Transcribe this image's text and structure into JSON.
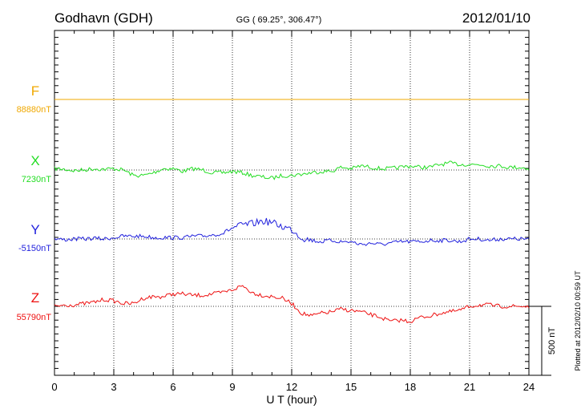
{
  "header": {
    "station": "Godhavn (GDH)",
    "coords": "GG ( 69.25°, 306.47°)",
    "date": "2012/01/10"
  },
  "footer": {
    "plotted": "Plotted at 2012/02/10 00:59 UT"
  },
  "chart_data": {
    "type": "line",
    "title": "Godhavn (GDH)",
    "xlabel": "U T (hour)",
    "ylabel": "",
    "xlim": [
      0,
      24
    ],
    "xticks": [
      0,
      3,
      6,
      9,
      12,
      15,
      18,
      21,
      24
    ],
    "grid": true,
    "scale_bar": {
      "label": "500 nT",
      "value_nT": 500
    },
    "series": [
      {
        "name": "F",
        "baseline_label": "88880nT",
        "color": "#f0a800",
        "x": [
          0,
          24
        ],
        "values": [
          0,
          0
        ]
      },
      {
        "name": "X",
        "baseline_label": "7230nT",
        "color": "#22dd22",
        "x": [
          0,
          0.5,
          1,
          1.5,
          2,
          2.5,
          3,
          3.5,
          4,
          4.5,
          5,
          5.5,
          6,
          6.5,
          7,
          7.5,
          8,
          8.5,
          9,
          9.5,
          10,
          10.5,
          11,
          11.5,
          12,
          12.5,
          13,
          13.5,
          14,
          14.5,
          15,
          15.5,
          16,
          16.5,
          17,
          17.5,
          18,
          18.5,
          19,
          19.5,
          20,
          20.5,
          21,
          21.5,
          22,
          22.5,
          23,
          23.5,
          24
        ],
        "values": [
          10,
          5,
          -5,
          0,
          10,
          5,
          10,
          0,
          -40,
          -40,
          -20,
          10,
          10,
          -10,
          10,
          0,
          -20,
          -20,
          -10,
          -20,
          -40,
          -50,
          -60,
          -40,
          -40,
          -30,
          -20,
          -10,
          -10,
          20,
          10,
          30,
          20,
          10,
          10,
          20,
          30,
          20,
          20,
          40,
          50,
          40,
          40,
          40,
          30,
          30,
          20,
          20,
          10
        ]
      },
      {
        "name": "Y",
        "baseline_label": "-5150nT",
        "color": "#2222dd",
        "x": [
          0,
          0.5,
          1,
          1.5,
          2,
          2.5,
          3,
          3.5,
          4,
          4.5,
          5,
          5.5,
          6,
          6.5,
          7,
          7.5,
          8,
          8.5,
          9,
          9.5,
          10,
          10.5,
          11,
          11.5,
          12,
          12.5,
          13,
          13.5,
          14,
          14.5,
          15,
          15.5,
          16,
          16.5,
          17,
          17.5,
          18,
          18.5,
          19,
          19.5,
          20,
          20.5,
          21,
          21.5,
          22,
          22.5,
          23,
          23.5,
          24
        ],
        "values": [
          0,
          -5,
          0,
          0,
          5,
          0,
          10,
          20,
          20,
          20,
          10,
          10,
          10,
          10,
          20,
          20,
          30,
          40,
          80,
          100,
          110,
          130,
          120,
          90,
          70,
          10,
          -10,
          -20,
          -10,
          -20,
          -20,
          -40,
          -30,
          -40,
          -30,
          -20,
          -20,
          -20,
          -10,
          -10,
          -10,
          -20,
          0,
          0,
          -10,
          0,
          0,
          0,
          0
        ]
      },
      {
        "name": "Z",
        "baseline_label": "55790nT",
        "color": "#ee1111",
        "x": [
          0,
          0.5,
          1,
          1.5,
          2,
          2.5,
          3,
          3.5,
          4,
          4.5,
          5,
          5.5,
          6,
          6.5,
          7,
          7.5,
          8,
          8.5,
          9,
          9.5,
          10,
          10.5,
          11,
          11.5,
          12,
          12.5,
          13,
          13.5,
          14,
          14.5,
          15,
          15.5,
          16,
          16.5,
          17,
          17.5,
          18,
          18.5,
          19,
          19.5,
          20,
          20.5,
          21,
          21.5,
          22,
          22.5,
          23,
          23.5,
          24
        ],
        "values": [
          0,
          10,
          10,
          20,
          30,
          50,
          40,
          20,
          20,
          60,
          70,
          70,
          90,
          90,
          80,
          80,
          90,
          100,
          120,
          150,
          100,
          80,
          70,
          60,
          20,
          -50,
          -70,
          -50,
          -40,
          -20,
          -30,
          -40,
          -60,
          -80,
          -110,
          -100,
          -110,
          -80,
          -70,
          -50,
          -40,
          -30,
          0,
          10,
          10,
          0,
          0,
          0,
          0
        ]
      }
    ]
  }
}
